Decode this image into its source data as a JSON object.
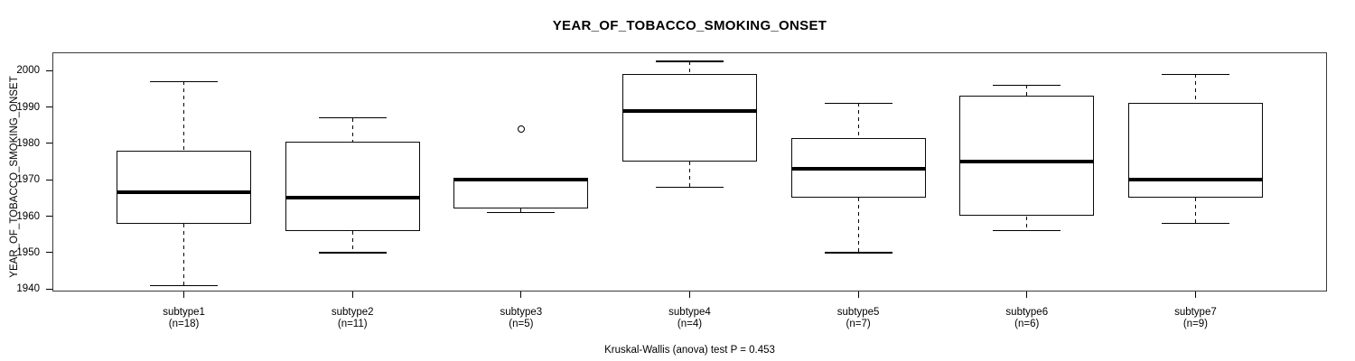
{
  "chart_data": {
    "type": "boxplot",
    "title": "YEAR_OF_TOBACCO_SMOKING_ONSET",
    "ylabel": "YEAR_OF_TOBACCO_SMOKING_ONSET",
    "annotation": "Kruskal-Wallis (anova) test P = 0.453",
    "ylim": [
      1939.3,
      2005.0
    ],
    "yticks": [
      1940,
      1950,
      1960,
      1970,
      1980,
      1990,
      2000
    ],
    "grid": false,
    "legend": "none",
    "categories": [
      "subtype1",
      "subtype2",
      "subtype3",
      "subtype4",
      "subtype5",
      "subtype6",
      "subtype7"
    ],
    "series": [
      {
        "name": "subtype1",
        "sublabel": "(n=18)",
        "n": 18,
        "whisker_low": 1941,
        "q1": 1958,
        "median": 1966.5,
        "q3": 1978,
        "whisker_high": 1997,
        "outliers": []
      },
      {
        "name": "subtype2",
        "sublabel": "(n=11)",
        "n": 11,
        "whisker_low": 1950,
        "q1": 1956,
        "median": 1965,
        "q3": 1980.5,
        "whisker_high": 1987,
        "outliers": []
      },
      {
        "name": "subtype3",
        "sublabel": "(n=5)",
        "n": 5,
        "whisker_low": 1961,
        "q1": 1962,
        "median": 1970,
        "q3": 1970,
        "whisker_high": 1970,
        "outliers": [
          1984
        ]
      },
      {
        "name": "subtype4",
        "sublabel": "(n=4)",
        "n": 4,
        "whisker_low": 1968,
        "q1": 1975,
        "median": 1989,
        "q3": 1999,
        "whisker_high": 2002.5,
        "outliers": []
      },
      {
        "name": "subtype5",
        "sublabel": "(n=7)",
        "n": 7,
        "whisker_low": 1950,
        "q1": 1965,
        "median": 1973,
        "q3": 1981.5,
        "whisker_high": 1991,
        "outliers": []
      },
      {
        "name": "subtype6",
        "sublabel": "(n=6)",
        "n": 6,
        "whisker_low": 1956,
        "q1": 1960,
        "median": 1975,
        "q3": 1993,
        "whisker_high": 1996,
        "outliers": []
      },
      {
        "name": "subtype7",
        "sublabel": "(n=9)",
        "n": 9,
        "whisker_low": 1958,
        "q1": 1965,
        "median": 1970,
        "q3": 1991,
        "whisker_high": 1999,
        "outliers": []
      }
    ]
  }
}
